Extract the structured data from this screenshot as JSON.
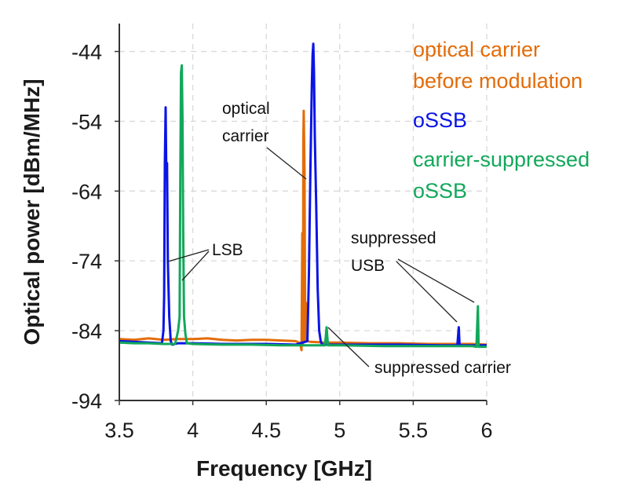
{
  "chart_data": {
    "type": "line",
    "xlabel": "Frequency [GHz]",
    "ylabel": "Optical power [dBm/MHz]",
    "xlim": [
      3.5,
      6.0
    ],
    "ylim": [
      -94,
      -40
    ],
    "xticks": [
      3.5,
      4,
      4.5,
      5,
      5.5,
      6
    ],
    "xtick_labels": [
      "3.5",
      "4",
      "4.5",
      "5",
      "5.5",
      "6"
    ],
    "yticks": [
      -94,
      -84,
      -74,
      -64,
      -54,
      -44
    ],
    "ytick_labels": [
      "-94",
      "-84",
      "-74",
      "-64",
      "-54",
      "-44"
    ],
    "grid": true,
    "grid_style": "dashed",
    "legend_placement": "top-right",
    "series": [
      {
        "name": "optical carrier before modulation",
        "color": "#e36c09",
        "x": [
          3.5,
          3.6,
          3.7,
          3.8,
          3.9,
          4.0,
          4.1,
          4.2,
          4.3,
          4.4,
          4.5,
          4.6,
          4.7,
          4.73,
          4.74,
          4.745,
          4.75,
          4.752,
          4.755,
          4.76,
          4.765,
          4.77,
          4.78,
          4.8,
          4.9,
          5.0,
          5.2,
          5.4,
          5.6,
          5.8,
          5.9,
          6.0
        ],
        "y": [
          -85.2,
          -85.3,
          -85.1,
          -85.3,
          -85.2,
          -85.2,
          -85.1,
          -85.3,
          -85.4,
          -85.3,
          -85.3,
          -85.4,
          -85.5,
          -85.8,
          -86.8,
          -70.0,
          -86.0,
          -57.0,
          -52.5,
          -61.0,
          -85.5,
          -80.0,
          -85.5,
          -85.6,
          -85.7,
          -85.7,
          -85.8,
          -85.8,
          -85.9,
          -85.9,
          -85.9,
          -86.0
        ]
      },
      {
        "name": "oSSB",
        "color": "#0a14e6",
        "x": [
          3.5,
          3.6,
          3.7,
          3.79,
          3.8,
          3.805,
          3.81,
          3.815,
          3.82,
          3.825,
          3.83,
          3.84,
          3.85,
          3.86,
          3.9,
          4.0,
          4.2,
          4.5,
          4.7,
          4.78,
          4.79,
          4.8,
          4.81,
          4.815,
          4.82,
          4.825,
          4.83,
          4.84,
          4.85,
          4.86,
          4.87,
          4.88,
          4.95,
          5.1,
          5.4,
          5.7,
          5.8,
          5.81,
          5.815,
          5.82,
          5.83,
          5.9,
          6.0
        ],
        "y": [
          -85.5,
          -85.6,
          -85.7,
          -85.8,
          -84.0,
          -79.0,
          -60.0,
          -52.0,
          -62.0,
          -60.0,
          -74.0,
          -82.0,
          -85.5,
          -86.0,
          -85.8,
          -85.8,
          -85.9,
          -85.9,
          -86.0,
          -85.5,
          -76.0,
          -61.0,
          -49.0,
          -44.5,
          -42.9,
          -47.0,
          -56.0,
          -66.0,
          -78.0,
          -84.0,
          -85.5,
          -86.0,
          -86.0,
          -86.0,
          -86.0,
          -86.1,
          -86.1,
          -83.5,
          -86.0,
          -86.1,
          -86.1,
          -86.1,
          -86.1
        ]
      },
      {
        "name": "carrier-suppressed oSSB",
        "color": "#12a85a",
        "x": [
          3.5,
          3.6,
          3.7,
          3.8,
          3.88,
          3.9,
          3.91,
          3.915,
          3.92,
          3.925,
          3.93,
          3.935,
          3.94,
          3.95,
          3.96,
          4.0,
          4.2,
          4.4,
          4.6,
          4.8,
          4.9,
          4.91,
          4.92,
          5.0,
          5.3,
          5.6,
          5.8,
          5.9,
          5.93,
          5.94,
          5.945,
          5.95,
          5.96,
          6.0
        ],
        "y": [
          -85.7,
          -85.8,
          -85.8,
          -85.9,
          -85.9,
          -84.0,
          -82.0,
          -62.0,
          -47.0,
          -46.0,
          -54.0,
          -70.0,
          -82.0,
          -84.5,
          -85.8,
          -85.9,
          -86.0,
          -86.0,
          -86.1,
          -86.1,
          -86.1,
          -83.5,
          -86.1,
          -86.1,
          -86.2,
          -86.2,
          -86.2,
          -86.2,
          -86.3,
          -80.5,
          -86.3,
          -86.3,
          -86.3,
          -86.3
        ]
      }
    ],
    "annotations": [
      {
        "lines": [
          "optical",
          "carrier"
        ]
      },
      {
        "lines": [
          "LSB"
        ]
      },
      {
        "lines": [
          "suppressed",
          "USB"
        ]
      },
      {
        "lines": [
          "suppressed carrier"
        ]
      }
    ]
  }
}
